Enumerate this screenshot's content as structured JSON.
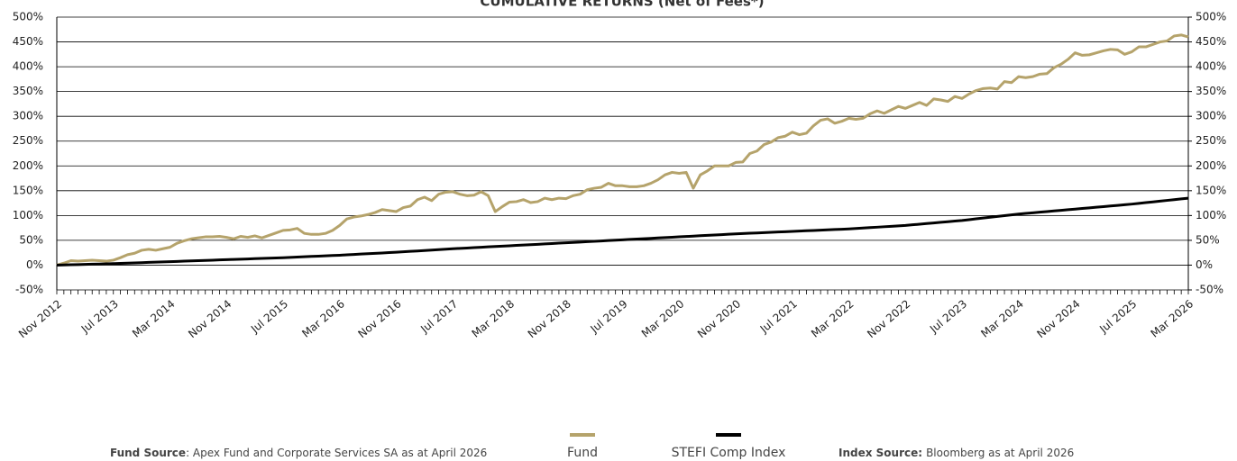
{
  "chart_data": {
    "type": "line",
    "title": "CUMULATIVE RETURNS (Net of Fees*)",
    "categories": [
      "Nov 2012",
      null,
      null,
      null,
      null,
      null,
      null,
      null,
      "Jul 2013",
      null,
      null,
      null,
      null,
      null,
      null,
      null,
      "Mar 2014",
      null,
      null,
      null,
      null,
      null,
      null,
      null,
      "Nov 2014",
      null,
      null,
      null,
      null,
      null,
      null,
      null,
      "Jul 2015",
      null,
      null,
      null,
      null,
      null,
      null,
      null,
      "Mar 2016",
      null,
      null,
      null,
      null,
      null,
      null,
      null,
      "Nov 2016",
      null,
      null,
      null,
      null,
      null,
      null,
      null,
      "Jul 2017",
      null,
      null,
      null,
      null,
      null,
      null,
      null,
      "Mar 2018",
      null,
      null,
      null,
      null,
      null,
      null,
      null,
      "Nov 2018",
      null,
      null,
      null,
      null,
      null,
      null,
      null,
      "Jul 2019",
      null,
      null,
      null,
      null,
      null,
      null,
      null,
      "Mar 2020",
      null,
      null,
      null,
      null,
      null,
      null,
      null,
      "Nov 2020",
      null,
      null,
      null,
      null,
      null,
      null,
      null,
      "Jul 2021",
      null,
      null,
      null,
      null,
      null,
      null,
      null,
      "Mar 2022",
      null,
      null,
      null,
      null,
      null,
      null,
      null,
      "Nov 2022",
      null,
      null,
      null,
      null,
      null,
      null,
      null,
      "Jul 2023",
      null,
      null,
      null,
      null,
      null,
      null,
      null,
      "Mar 2024",
      null,
      null,
      null,
      null,
      null,
      null,
      null,
      "Nov 2024",
      null,
      null,
      null,
      null,
      null,
      null,
      null,
      "Jul 2025",
      null,
      null,
      null,
      null,
      null,
      null,
      null,
      "Mar 2026"
    ],
    "series": [
      {
        "name": "Fund",
        "color": "#b5a36b",
        "values": [
          0,
          4,
          9,
          8,
          9,
          10,
          9,
          8,
          10,
          15,
          21,
          24,
          30,
          32,
          30,
          33,
          36,
          44,
          49,
          53,
          55,
          57,
          57,
          58,
          56,
          53,
          58,
          56,
          59,
          55,
          60,
          65,
          70,
          71,
          74,
          64,
          62,
          62,
          64,
          70,
          80,
          93,
          97,
          99,
          102,
          106,
          112,
          110,
          108,
          116,
          119,
          132,
          137,
          130,
          143,
          147,
          148,
          143,
          140,
          141,
          148,
          140,
          108,
          118,
          127,
          128,
          132,
          126,
          128,
          135,
          132,
          135,
          134,
          140,
          143,
          152,
          155,
          157,
          165,
          160,
          160,
          158,
          158,
          160,
          165,
          172,
          182,
          187,
          185,
          187,
          155,
          182,
          190,
          200,
          200,
          200,
          207,
          208,
          225,
          230,
          243,
          248,
          257,
          260,
          268,
          263,
          266,
          281,
          292,
          295,
          286,
          290,
          296,
          294,
          296,
          305,
          311,
          306,
          313,
          320,
          316,
          322,
          328,
          322,
          335,
          333,
          330,
          340,
          336,
          345,
          352,
          356,
          357,
          355,
          370,
          368,
          380,
          378,
          380,
          385,
          386,
          398,
          405,
          415,
          428,
          423,
          424,
          428,
          432,
          435,
          434,
          425,
          430,
          440,
          440,
          445,
          450,
          452,
          462,
          464,
          460
        ]
      },
      {
        "name": "STEFI Comp Index",
        "color": "#000000",
        "values": [
          0,
          0.4,
          0.8,
          1.1,
          1.5,
          1.9,
          2.3,
          2.6,
          3,
          3.5,
          4,
          4.5,
          5,
          5.5,
          6,
          6.5,
          7,
          7.5,
          8,
          8.5,
          9,
          9.5,
          10,
          10.5,
          11,
          11.5,
          12,
          12.5,
          13,
          13.5,
          14,
          14.5,
          15,
          15.6,
          16.3,
          16.9,
          17.5,
          18.1,
          18.8,
          19.4,
          20,
          20.8,
          21.5,
          22.3,
          23,
          23.8,
          24.5,
          25.3,
          26,
          26.9,
          27.8,
          28.6,
          29.5,
          30.4,
          31.3,
          32.1,
          33,
          33.8,
          34.5,
          35.3,
          36,
          36.8,
          37.5,
          38.3,
          39,
          39.8,
          40.5,
          41.3,
          42,
          42.8,
          43.5,
          44.3,
          45,
          45.8,
          46.5,
          47.3,
          48,
          48.8,
          49.5,
          50.3,
          51,
          51.8,
          52.5,
          53.3,
          54,
          54.8,
          55.5,
          56.3,
          57,
          57.8,
          58.5,
          59.3,
          60,
          60.8,
          61.5,
          62.3,
          63,
          63.6,
          64.3,
          64.9,
          65.5,
          66.1,
          66.8,
          67.4,
          68,
          68.6,
          69.3,
          69.9,
          70.5,
          71.1,
          71.8,
          72.4,
          73,
          73.9,
          74.8,
          75.6,
          76.5,
          77.4,
          78.3,
          79.1,
          80,
          81.3,
          82.5,
          83.8,
          85,
          86.3,
          87.5,
          88.8,
          90,
          91.6,
          93.3,
          94.9,
          96.5,
          98.1,
          99.8,
          101.4,
          103,
          104.3,
          105.5,
          106.8,
          108,
          109.3,
          110.5,
          111.8,
          113,
          114.3,
          115.5,
          116.8,
          118,
          119.3,
          120.5,
          121.8,
          123,
          124.5,
          126,
          127.5,
          129,
          130.5,
          132,
          133.5,
          135
        ]
      }
    ],
    "ylim": [
      -50,
      500
    ],
    "yticks": [
      {
        "value": -50,
        "label": "-50%"
      },
      {
        "value": 0,
        "label": "0%"
      },
      {
        "value": 50,
        "label": "50%"
      },
      {
        "value": 100,
        "label": "100%"
      },
      {
        "value": 150,
        "label": "150%"
      },
      {
        "value": 200,
        "label": "200%"
      },
      {
        "value": 250,
        "label": "250%"
      },
      {
        "value": 300,
        "label": "300%"
      },
      {
        "value": 350,
        "label": "350%"
      },
      {
        "value": 400,
        "label": "400%"
      },
      {
        "value": 450,
        "label": "450%"
      },
      {
        "value": 500,
        "label": "500%"
      }
    ],
    "y2lim": [
      -50,
      500
    ],
    "y2ticks": [
      {
        "value": -50,
        "label": "-50%"
      },
      {
        "value": 0,
        "label": "0%"
      },
      {
        "value": 50,
        "label": "50%"
      },
      {
        "value": 100,
        "label": "100%"
      },
      {
        "value": 150,
        "label": "150%"
      },
      {
        "value": 200,
        "label": "200%"
      },
      {
        "value": 250,
        "label": "250%"
      },
      {
        "value": 300,
        "label": "300%"
      },
      {
        "value": 350,
        "label": "350%"
      },
      {
        "value": 400,
        "label": "400%"
      },
      {
        "value": 450,
        "label": "450%"
      },
      {
        "value": 500,
        "label": "500%"
      }
    ],
    "grid": true,
    "notes": {
      "fund_source_label": "Fund Source",
      "fund_source_text": ": Apex Fund and Corporate Services SA as at April 2026",
      "index_source_label": "Index Source:",
      "index_source_text": "Bloomberg as at April 2026"
    }
  }
}
